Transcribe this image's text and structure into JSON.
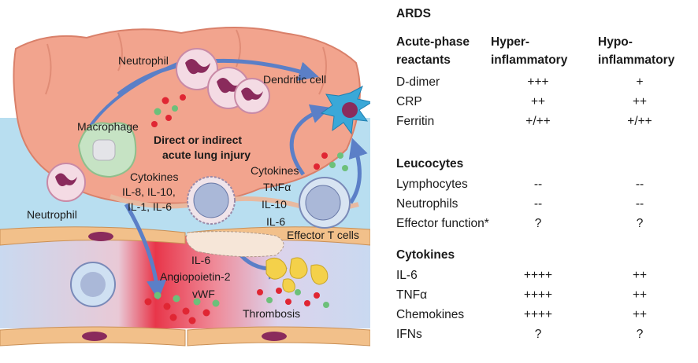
{
  "illustration": {
    "labels": {
      "neutrophil_top": "Neutrophil",
      "dendritic_cell": "Dendritic cell",
      "macrophage": "Macrophage",
      "injury_line1": "Direct or indirect",
      "injury_line2": "acute lung injury",
      "cytokines_left_line1": "Cytokines",
      "cytokines_left_line2": "IL-8, IL-10,",
      "cytokines_left_line3": "IL-1, IL-6",
      "cytokines_right_line1": "Cytokines",
      "cytokines_right_line2": "TNFα",
      "cytokines_right_line3": "IL-10",
      "cytokines_right_line4": "IL-6",
      "neutrophil_left": "Neutrophil",
      "effector_t_cells": "Effector T cells",
      "vessel_line1": "IL-6",
      "vessel_line2": "Angiopoietin-2",
      "vessel_line3": "vWF",
      "thrombosis": "Thrombosis"
    },
    "colors": {
      "alveolus": "#f2a48e",
      "alveolus_outline": "#d9806a",
      "interstitium": "#b8def0",
      "vessel": "#c9d9f0",
      "vessel_hot": "#e8364a",
      "endothelium": "#f2c08a",
      "arrow": "#5b7fc7",
      "neutrophil": "#f4dbe4",
      "nucleus": "#8a2b5c",
      "macrophage": "#c6e3c4",
      "dendritic": "#3aa8d8",
      "t_cell": "#aab8d8",
      "platelet": "#f4d14a",
      "dot_red": "#e02633",
      "dot_green": "#6cc07a"
    }
  },
  "table": {
    "title": "ARDS",
    "col_headers": {
      "col1_line1": "Acute-phase",
      "col1_line2": "reactants",
      "col2_line1": "Hyper-",
      "col2_line2": "inflammatory",
      "col3_line1": "Hypo-",
      "col3_line2": "inflammatory"
    },
    "acute_phase_rows": [
      {
        "name": "D-dimer",
        "hyper": "+++",
        "hypo": "+"
      },
      {
        "name": "CRP",
        "hyper": "++",
        "hypo": "++"
      },
      {
        "name": "Ferritin",
        "hyper": "+/++",
        "hypo": "+/++"
      }
    ],
    "leucocytes_header": "Leucocytes",
    "leucocyte_rows": [
      {
        "name": "Lymphocytes",
        "hyper": "--",
        "hypo": "--"
      },
      {
        "name": "Neutrophils",
        "hyper": "--",
        "hypo": "--"
      },
      {
        "name": "Effector function*",
        "hyper": "?",
        "hypo": "?"
      }
    ],
    "cytokines_header": "Cytokines",
    "cytokine_rows": [
      {
        "name": "IL-6",
        "hyper": "++++",
        "hypo": "++"
      },
      {
        "name": "TNFα",
        "hyper": "++++",
        "hypo": "++"
      },
      {
        "name": "Chemokines",
        "hyper": "++++",
        "hypo": "++"
      },
      {
        "name": "IFNs",
        "hyper": "?",
        "hypo": "?"
      }
    ]
  }
}
